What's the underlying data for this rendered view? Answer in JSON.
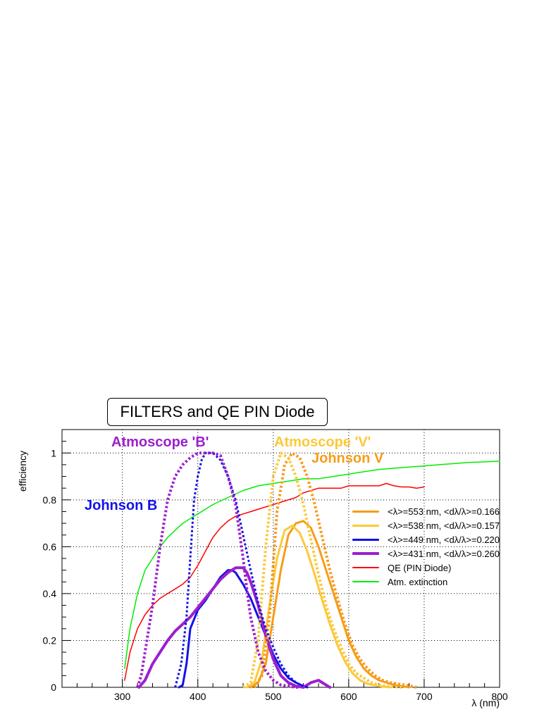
{
  "chart_data": {
    "type": "line",
    "title": "FILTERS and QE PIN Diode",
    "xlabel": "λ (nm)",
    "ylabel": "efficiency",
    "xlim": [
      220,
      800
    ],
    "ylim": [
      0,
      1.1
    ],
    "x_ticks": [
      300,
      400,
      500,
      600,
      700,
      800
    ],
    "y_ticks": [
      0,
      0.2,
      0.4,
      0.6,
      0.8,
      1
    ],
    "x_tick_labels": [
      "300",
      "400",
      "500",
      "600",
      "700",
      "800"
    ],
    "y_tick_labels": [
      "0",
      "0.2",
      "0.4",
      "0.6",
      "0.8",
      "1"
    ],
    "grid": true,
    "legend_position": "right",
    "annotations": [
      {
        "text": "Atmoscope 'B'",
        "color": "#9c1fce"
      },
      {
        "text": "Johnson B",
        "color": "#1212e8"
      },
      {
        "text": "Atmoscope 'V'",
        "color": "#fcc93a"
      },
      {
        "text": "Johnson V",
        "color": "#f79c1a"
      }
    ],
    "series": [
      {
        "name": "<λ>=553 nm, <dλ/λ>=0.166",
        "color": "#f79c1a",
        "style": "solid",
        "width": 3,
        "x": [
          470,
          480,
          490,
          500,
          510,
          520,
          530,
          540,
          550,
          560,
          570,
          580,
          590,
          600,
          610,
          620,
          630,
          640,
          650,
          660,
          670,
          680
        ],
        "y": [
          0,
          0.02,
          0.1,
          0.3,
          0.5,
          0.65,
          0.7,
          0.71,
          0.68,
          0.6,
          0.5,
          0.4,
          0.3,
          0.2,
          0.13,
          0.08,
          0.05,
          0.03,
          0.02,
          0.01,
          0.005,
          0
        ]
      },
      {
        "name": "<λ>=538 nm, <dλ/λ>=0.157",
        "color": "#fcc93a",
        "style": "solid",
        "width": 3,
        "x": [
          465,
          475,
          485,
          495,
          505,
          515,
          525,
          535,
          545,
          555,
          565,
          575,
          585,
          595,
          605,
          615,
          625,
          635,
          645,
          655
        ],
        "y": [
          0,
          0.02,
          0.12,
          0.35,
          0.55,
          0.67,
          0.69,
          0.66,
          0.58,
          0.48,
          0.37,
          0.27,
          0.18,
          0.11,
          0.06,
          0.03,
          0.015,
          0.008,
          0.003,
          0
        ]
      },
      {
        "name": "<λ>=449 nm, <dλ/λ>=0.220",
        "color": "#1212e8",
        "style": "solid",
        "width": 3,
        "x": [
          375,
          380,
          385,
          390,
          400,
          410,
          420,
          430,
          440,
          445,
          450,
          460,
          470,
          480,
          490,
          500,
          510,
          520,
          530,
          540,
          545
        ],
        "y": [
          0,
          0.01,
          0.1,
          0.25,
          0.33,
          0.37,
          0.42,
          0.47,
          0.5,
          0.5,
          0.49,
          0.44,
          0.38,
          0.3,
          0.22,
          0.14,
          0.08,
          0.04,
          0.02,
          0.005,
          0
        ]
      },
      {
        "name": "<λ>=431 nm, <dλ/λ>=0.260",
        "color": "#9c1fce",
        "style": "solid",
        "width": 4,
        "x": [
          322,
          330,
          340,
          350,
          360,
          370,
          380,
          390,
          400,
          410,
          420,
          430,
          440,
          450,
          460,
          465,
          470,
          480,
          490,
          500,
          510,
          520,
          530,
          540,
          550,
          560,
          570,
          575
        ],
        "y": [
          0,
          0.03,
          0.1,
          0.15,
          0.2,
          0.24,
          0.27,
          0.3,
          0.34,
          0.38,
          0.42,
          0.46,
          0.49,
          0.51,
          0.51,
          0.49,
          0.45,
          0.35,
          0.22,
          0.12,
          0.05,
          0.02,
          0.005,
          0,
          0.02,
          0.03,
          0.01,
          0
        ]
      },
      {
        "name": "QE (PIN Diode)",
        "color": "#ff0000",
        "style": "solid",
        "width": 1.5,
        "x": [
          303,
          310,
          320,
          330,
          340,
          350,
          360,
          370,
          380,
          390,
          400,
          410,
          420,
          430,
          440,
          450,
          460,
          470,
          480,
          490,
          500,
          510,
          520,
          530,
          540,
          550,
          560,
          570,
          580,
          590,
          600,
          610,
          620,
          630,
          640,
          650,
          660,
          670,
          680,
          690,
          700
        ],
        "y": [
          0.03,
          0.15,
          0.25,
          0.31,
          0.35,
          0.38,
          0.4,
          0.42,
          0.44,
          0.47,
          0.52,
          0.58,
          0.64,
          0.68,
          0.71,
          0.73,
          0.74,
          0.75,
          0.76,
          0.77,
          0.78,
          0.79,
          0.8,
          0.81,
          0.83,
          0.84,
          0.85,
          0.85,
          0.85,
          0.85,
          0.86,
          0.86,
          0.86,
          0.86,
          0.86,
          0.87,
          0.86,
          0.855,
          0.855,
          0.85,
          0.855
        ]
      },
      {
        "name": "Atm. extinction",
        "color": "#00ee00",
        "style": "solid",
        "width": 1.5,
        "x": [
          303,
          310,
          320,
          330,
          340,
          350,
          360,
          370,
          380,
          390,
          400,
          420,
          440,
          460,
          480,
          500,
          520,
          540,
          560,
          580,
          600,
          620,
          640,
          660,
          680,
          700,
          720,
          740,
          760,
          780,
          800
        ],
        "y": [
          0.08,
          0.25,
          0.4,
          0.5,
          0.55,
          0.6,
          0.64,
          0.67,
          0.7,
          0.72,
          0.74,
          0.78,
          0.81,
          0.84,
          0.86,
          0.87,
          0.88,
          0.89,
          0.89,
          0.9,
          0.91,
          0.92,
          0.93,
          0.935,
          0.94,
          0.945,
          0.95,
          0.955,
          0.96,
          0.962,
          0.965
        ]
      },
      {
        "name": "",
        "color": "#f79c1a",
        "style": "dotted",
        "width": 4,
        "x": [
          475,
          485,
          495,
          505,
          515,
          525,
          535,
          545,
          555,
          565,
          575,
          585,
          595,
          605,
          615,
          625,
          635,
          645,
          655,
          665,
          675,
          690
        ],
        "y": [
          0,
          0.05,
          0.3,
          0.75,
          0.95,
          1,
          0.98,
          0.9,
          0.78,
          0.64,
          0.5,
          0.38,
          0.27,
          0.18,
          0.12,
          0.08,
          0.05,
          0.03,
          0.02,
          0.015,
          0.01,
          0
        ]
      },
      {
        "name": "",
        "color": "#fcc93a",
        "style": "dotted",
        "width": 4,
        "x": [
          460,
          470,
          480,
          490,
          500,
          510,
          520,
          530,
          540,
          550,
          560,
          570,
          580,
          590,
          600,
          610,
          620,
          630,
          640,
          650,
          660,
          670
        ],
        "y": [
          0,
          0.02,
          0.2,
          0.6,
          0.9,
          1,
          0.98,
          0.9,
          0.78,
          0.63,
          0.48,
          0.35,
          0.25,
          0.17,
          0.1,
          0.06,
          0.04,
          0.02,
          0.01,
          0.005,
          0.002,
          0
        ]
      },
      {
        "name": "",
        "color": "#1212e8",
        "style": "dotted",
        "width": 3,
        "x": [
          370,
          378,
          385,
          390,
          395,
          400,
          405,
          410,
          420,
          430,
          440,
          450,
          460,
          470,
          480,
          490,
          500,
          510,
          520,
          530,
          540,
          545
        ],
        "y": [
          0,
          0.1,
          0.3,
          0.55,
          0.8,
          0.9,
          0.97,
          1,
          1,
          0.97,
          0.9,
          0.8,
          0.65,
          0.5,
          0.36,
          0.25,
          0.17,
          0.1,
          0.05,
          0.02,
          0.005,
          0
        ]
      },
      {
        "name": "",
        "color": "#9c1fce",
        "style": "dotted",
        "width": 4,
        "x": [
          320,
          325,
          330,
          340,
          350,
          360,
          370,
          380,
          390,
          400,
          410,
          420,
          430,
          440,
          450,
          460,
          465,
          470,
          480,
          490,
          500,
          510,
          520,
          530,
          535
        ],
        "y": [
          0,
          0.05,
          0.15,
          0.35,
          0.6,
          0.8,
          0.9,
          0.95,
          0.98,
          1,
          1,
          1,
          0.99,
          0.9,
          0.78,
          0.55,
          0.42,
          0.3,
          0.15,
          0.07,
          0.03,
          0.01,
          0.005,
          0,
          0
        ]
      }
    ]
  }
}
